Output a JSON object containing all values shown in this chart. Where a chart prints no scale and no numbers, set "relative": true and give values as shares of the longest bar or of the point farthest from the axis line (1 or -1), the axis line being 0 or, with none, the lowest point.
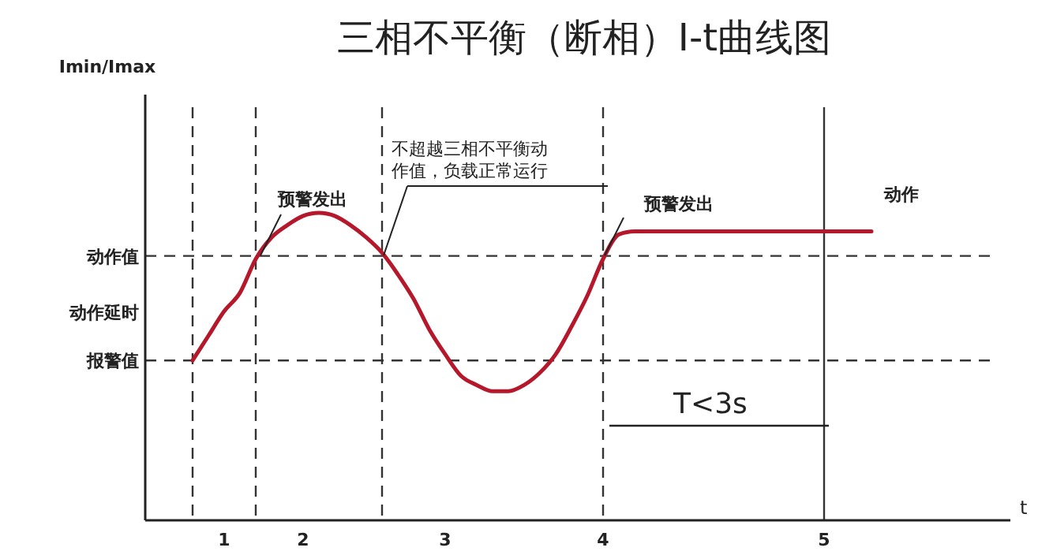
{
  "chart_data": {
    "type": "line",
    "title": "三相不平衡（断相）I-t曲线图",
    "xlabel": "t",
    "relative": true,
    "categories": [
      null,
      null,
      null,
      null,
      null,
      "1",
      null,
      null,
      null,
      null,
      "2",
      null,
      null,
      null,
      null,
      null,
      null,
      null,
      null,
      "3",
      null,
      null,
      null,
      null,
      null,
      null,
      null,
      null,
      null,
      "4",
      null,
      null,
      null,
      null,
      null,
      null,
      null,
      null,
      null,
      null,
      null,
      null,
      null,
      "5",
      null,
      null,
      null,
      null,
      null,
      null,
      null,
      null,
      null,
      null,
      null
    ],
    "series": [
      {
        "color": "#b5172b",
        "values": [
          null,
          null,
          null,
          0.52,
          0.6,
          0.68,
          0.74,
          0.85,
          0.92,
          0.96,
          0.99,
          1,
          0.99,
          0.96,
          0.92,
          0.87,
          0.8,
          0.72,
          0.62,
          0.54,
          0.47,
          0.44,
          0.42,
          0.42,
          0.44,
          0.48,
          0.54,
          0.63,
          0.73,
          0.85,
          0.93,
          0.94,
          0.94,
          0.94,
          0.94,
          0.94,
          0.94,
          0.94,
          0.94,
          0.94,
          0.94,
          0.94,
          0.94,
          0.94,
          0.94,
          0.94,
          0.94,
          null,
          null,
          null,
          null,
          null,
          null,
          null,
          null
        ]
      }
    ],
    "ref_lines": [
      {
        "axis": "y",
        "value": 0.86,
        "label": "动作值",
        "color": "#333333",
        "line_style": "dashed"
      },
      {
        "axis": "y",
        "value": 0.52,
        "label": "报警值",
        "color": "#333333",
        "line_style": "dashed"
      }
    ],
    "annotations": [
      "动作延时",
      "预警发出",
      "不超越三相不平衡动作值，负载正常运行",
      "预警发出",
      "动作",
      "T<3s",
      "Imin/Imax"
    ],
    "marker": "none",
    "line_style": "solid",
    "grid": "x"
  }
}
